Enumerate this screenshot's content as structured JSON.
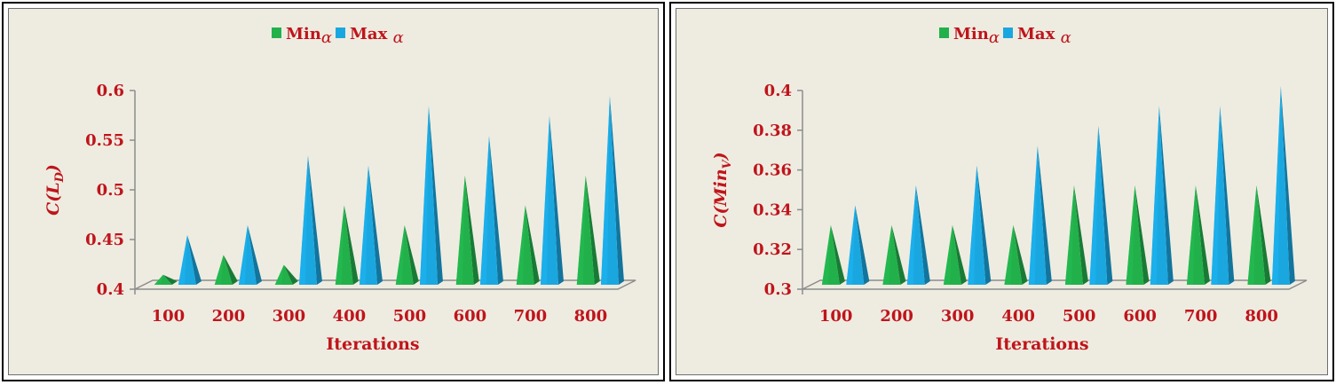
{
  "chart_data": [
    {
      "type": "bar",
      "style": "3d-cone",
      "legend": {
        "position": "top-center",
        "entries": [
          "Minα",
          "Max α"
        ]
      },
      "ylabel": "C(L_D)",
      "xlabel": "Iterations",
      "categories": [
        "100",
        "200",
        "300",
        "400",
        "500",
        "600",
        "700",
        "800"
      ],
      "ylim": [
        0.4,
        0.6
      ],
      "yticks": [
        "0.4",
        "0.45",
        "0.5",
        "0.55",
        "0.6"
      ],
      "series": [
        {
          "name": "Minα",
          "color": "#22b04b",
          "values": [
            0.41,
            0.43,
            0.42,
            0.48,
            0.46,
            0.51,
            0.48,
            0.51
          ]
        },
        {
          "name": "Max α",
          "color": "#1aa7e0",
          "values": [
            0.45,
            0.46,
            0.53,
            0.52,
            0.58,
            0.55,
            0.57,
            0.59
          ]
        }
      ]
    },
    {
      "type": "bar",
      "style": "3d-cone",
      "legend": {
        "position": "top-center",
        "entries": [
          "Minα",
          "Max α"
        ]
      },
      "ylabel": "C(Min_V)",
      "xlabel": "Iterations",
      "categories": [
        "100",
        "200",
        "300",
        "400",
        "500",
        "600",
        "700",
        "800"
      ],
      "ylim": [
        0.3,
        0.4
      ],
      "yticks": [
        "0.3",
        "0.32",
        "0.34",
        "0.36",
        "0.38",
        "0.4"
      ],
      "series": [
        {
          "name": "Minα",
          "color": "#22b04b",
          "values": [
            0.33,
            0.33,
            0.33,
            0.33,
            0.35,
            0.35,
            0.35,
            0.35
          ]
        },
        {
          "name": "Max α",
          "color": "#1aa7e0",
          "values": [
            0.34,
            0.35,
            0.36,
            0.37,
            0.38,
            0.39,
            0.39,
            0.4
          ]
        }
      ]
    }
  ],
  "colors": {
    "text": "#c0141b",
    "axis": "#8c8c8c",
    "background": "#eeece1"
  }
}
